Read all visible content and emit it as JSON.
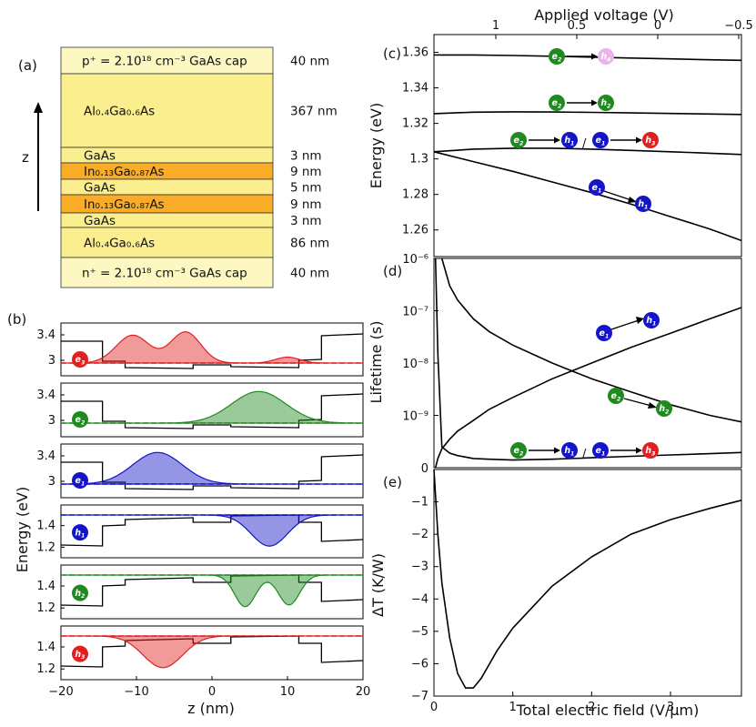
{
  "panel_labels": {
    "a": "(a)",
    "b": "(b)",
    "c": "(c)",
    "d": "(d)",
    "e": "(e)"
  },
  "layer_stack": {
    "z_label": "z",
    "layers": [
      {
        "name": "p⁺ = 2.10¹⁸ cm⁻³  GaAs cap",
        "thickness": "40 nm",
        "color": "#fdf8c2"
      },
      {
        "name": "Al₀.₄Ga₀.₆As",
        "thickness": "367 nm",
        "color": "#fbee8e"
      },
      {
        "name": "GaAs",
        "thickness": "3 nm",
        "color": "#fbee8e"
      },
      {
        "name": "In₀.₁₃Ga₀.₈₇As",
        "thickness": "9 nm",
        "color": "#f9ac28"
      },
      {
        "name": "GaAs",
        "thickness": "5 nm",
        "color": "#fbee8e"
      },
      {
        "name": "In₀.₁₃Ga₀.₈₇As",
        "thickness": "9 nm",
        "color": "#f9ac28"
      },
      {
        "name": "GaAs",
        "thickness": "3 nm",
        "color": "#fbee8e"
      },
      {
        "name": "Al₀.₄Ga₀.₆As",
        "thickness": "86 nm",
        "color": "#fbee8e"
      },
      {
        "name": "n⁺ = 2.10¹⁸ cm⁻³  GaAs cap",
        "thickness": "40 nm",
        "color": "#fdf8c2"
      }
    ]
  },
  "wavefunctions": {
    "ylabel": "Energy (eV)",
    "xlabel": "z (nm)",
    "xticks": [
      "−20",
      "−10",
      "0",
      "10",
      "20"
    ],
    "xlim": [
      -20,
      20
    ],
    "subplots": [
      {
        "state": "e",
        "index": "3",
        "color": "#e02020",
        "yticks": [
          "3.4",
          "3"
        ]
      },
      {
        "state": "e",
        "index": "2",
        "color": "#1f8a1f",
        "yticks": [
          "3.4",
          "3"
        ]
      },
      {
        "state": "e",
        "index": "1",
        "color": "#1414c8",
        "yticks": [
          "3.4",
          "3"
        ]
      },
      {
        "state": "h",
        "index": "1",
        "color": "#1414c8",
        "yticks": [
          "1.4",
          "1.2"
        ]
      },
      {
        "state": "h",
        "index": "2",
        "color": "#1f8a1f",
        "yticks": [
          "1.4",
          "1.2"
        ]
      },
      {
        "state": "h",
        "index": "3",
        "color": "#e02020",
        "yticks": [
          "1.4",
          "1.2"
        ]
      }
    ]
  },
  "chart_data": [
    {
      "type": "line",
      "panel": "c",
      "ylabel": "Energy (eV)",
      "x2label": "Applied voltage (V)",
      "ylim": [
        1.245,
        1.37
      ],
      "yticks": [
        "1.36",
        "1.34",
        "1.32",
        "1.3",
        "1.28",
        "1.26"
      ],
      "x2ticks": [
        "1",
        "0.5",
        "0",
        "−0.5"
      ],
      "x": [
        0,
        0.5,
        1,
        1.5,
        2,
        2.5,
        3,
        3.5,
        3.9
      ],
      "series": [
        {
          "label": "e2 → h4",
          "values": [
            1.3585,
            1.3585,
            1.3582,
            1.3578,
            1.3573,
            1.3568,
            1.3563,
            1.3558,
            1.3555
          ]
        },
        {
          "label": "e2 → h2",
          "values": [
            1.3255,
            1.3263,
            1.3265,
            1.3264,
            1.3262,
            1.3259,
            1.3256,
            1.3253,
            1.325
          ]
        },
        {
          "label": "e2 → h1 / e1 → h3",
          "values": [
            1.304,
            1.3055,
            1.306,
            1.306,
            1.3055,
            1.3048,
            1.304,
            1.3032,
            1.3025
          ]
        },
        {
          "label": "e1 → h1",
          "values": [
            1.304,
            1.2985,
            1.293,
            1.287,
            1.281,
            1.2745,
            1.2675,
            1.2605,
            1.254
          ]
        }
      ]
    },
    {
      "type": "line",
      "panel": "d",
      "ylabel": "Lifetime (s)",
      "yscale": "log",
      "ylim": [
        1e-10,
        1e-06
      ],
      "ytick_labels": [
        "10⁻⁶",
        "10⁻⁷",
        "10⁻⁸",
        "10⁻⁹",
        "0"
      ],
      "x": [
        0.02,
        0.05,
        0.1,
        0.2,
        0.3,
        0.5,
        0.7,
        1,
        1.5,
        2,
        2.5,
        3,
        3.5,
        3.9
      ],
      "series": [
        {
          "label": "e1 → h1",
          "values": [
            1e-10,
            1.5e-10,
            2.3e-10,
            3.5e-10,
            5e-10,
            8e-10,
            1.3e-09,
            2.2e-09,
            5e-09,
            1e-08,
            2e-08,
            3.7e-08,
            7e-08,
            1.15e-07
          ]
        },
        {
          "label": "e2 → h2",
          "values": [
            null,
            null,
            1e-06,
            3e-07,
            1.6e-07,
            7e-08,
            4e-08,
            2.2e-08,
            1e-08,
            5e-09,
            2.8e-09,
            1.6e-09,
            1e-09,
            7.5e-10
          ]
        },
        {
          "label": "e2 → h1 / e1 → h3",
          "values": [
            1e-06,
            1.5e-08,
            2.5e-10,
            1.9e-10,
            1.7e-10,
            1.5e-10,
            1.45e-10,
            1.4e-10,
            1.45e-10,
            1.55e-10,
            1.65e-10,
            1.75e-10,
            1.85e-10,
            1.95e-10
          ]
        }
      ]
    },
    {
      "type": "line",
      "panel": "e",
      "ylabel": "ΔT (K/W)",
      "xlabel": "Total electric field (V/μm)",
      "ylim": [
        -7,
        0
      ],
      "yticks": [
        "−1",
        "−2",
        "−3",
        "−4",
        "−5",
        "−6",
        "−7"
      ],
      "xticks": [
        "0",
        "1",
        "2",
        "3"
      ],
      "xlim": [
        0,
        3.9
      ],
      "x": [
        0,
        0.05,
        0.1,
        0.2,
        0.3,
        0.4,
        0.5,
        0.6,
        0.8,
        1.0,
        1.5,
        2.0,
        2.5,
        3.0,
        3.5,
        3.9
      ],
      "values": [
        0,
        -2.0,
        -3.5,
        -5.2,
        -6.3,
        -6.75,
        -6.75,
        -6.45,
        -5.6,
        -4.9,
        -3.6,
        -2.7,
        -2.0,
        -1.55,
        -1.2,
        -0.95
      ]
    }
  ]
}
